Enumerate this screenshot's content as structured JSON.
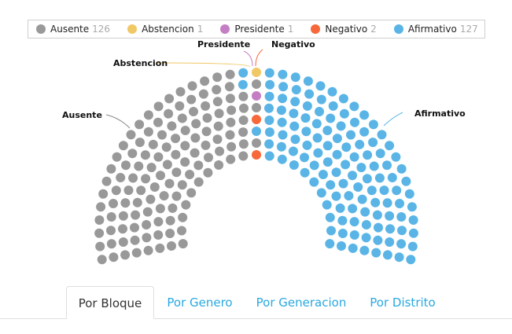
{
  "legend": [
    {
      "label": "Ausente",
      "count": "126",
      "color": "#999999"
    },
    {
      "label": "Abstencion",
      "count": "1",
      "color": "#f0c865"
    },
    {
      "label": "Presidente",
      "count": "1",
      "color": "#c47fc4"
    },
    {
      "label": "Negativo",
      "count": "2",
      "color": "#f7683a"
    },
    {
      "label": "Afirmativo",
      "count": "127",
      "color": "#5ab5e6"
    }
  ],
  "annotations": {
    "presidente": "Presidente",
    "negativo": "Negativo",
    "abstencion": "Abstencion",
    "ausente": "Ausente",
    "afirmativo": "Afirmativo"
  },
  "tabs": [
    {
      "label": "Por Bloque",
      "active": true
    },
    {
      "label": "Por Genero",
      "active": false
    },
    {
      "label": "Por Generacion",
      "active": false
    },
    {
      "label": "Por Distrito",
      "active": false
    }
  ],
  "chart_data": {
    "type": "parliament",
    "title": "",
    "total_seats": 257,
    "categories": [
      "Ausente",
      "Abstencion",
      "Presidente",
      "Negativo",
      "Afirmativo"
    ],
    "values": [
      126,
      1,
      1,
      2,
      127
    ],
    "colors": [
      "#999999",
      "#f0c865",
      "#c47fc4",
      "#f7683a",
      "#5ab5e6"
    ],
    "rows": 8,
    "center_column_top_to_bottom": [
      "Abstencion",
      "Ausente",
      "Presidente",
      "Ausente",
      "Negativo",
      "Afirmativo",
      "Ausente",
      "Negativo"
    ],
    "legend_position": "top"
  }
}
